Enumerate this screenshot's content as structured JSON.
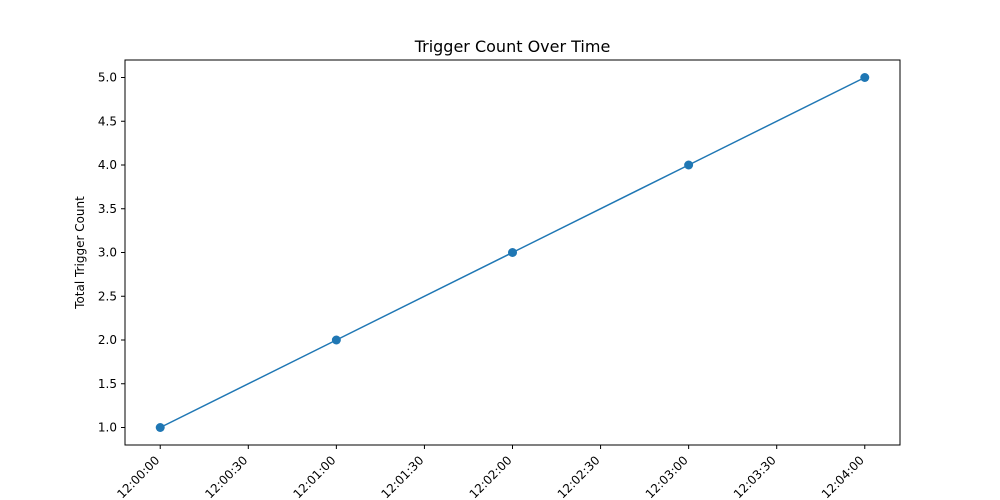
{
  "chart_data": {
    "type": "line",
    "title": "Trigger Count Over Time",
    "xlabel": "",
    "ylabel": "Total Trigger Count",
    "x": [
      "12:00:00",
      "12:01:00",
      "12:02:00",
      "12:03:00",
      "12:04:00"
    ],
    "series": [
      {
        "values": [
          1.0,
          2.0,
          3.0,
          4.0,
          5.0
        ],
        "color": "#1f77b4",
        "marker": "circle"
      }
    ],
    "x_ticks": [
      "12:00:00",
      "12:00:30",
      "12:01:00",
      "12:01:30",
      "12:02:00",
      "12:02:30",
      "12:03:00",
      "12:03:30",
      "12:04:00"
    ],
    "y_ticks": [
      "1.0",
      "1.5",
      "2.0",
      "2.5",
      "3.0",
      "3.5",
      "4.0",
      "4.5",
      "5.0"
    ],
    "ylim": [
      0.8,
      5.2
    ],
    "grid": false,
    "legend": false
  }
}
